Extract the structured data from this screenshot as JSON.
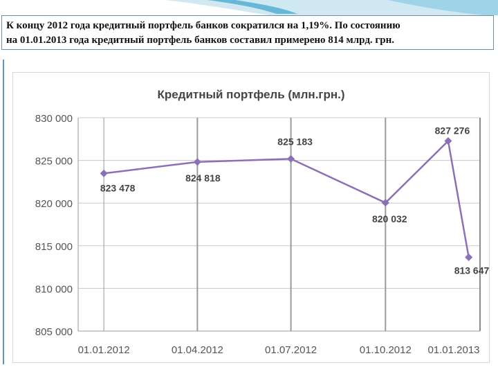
{
  "heading": {
    "line1": "К концу 2012 года кредитный портфель банков сократился на 1,19%. По состоянию",
    "line2": "на 01.01.2013 года кредитный портфель банков составил примерено 814 млрд. грн."
  },
  "colors": {
    "series": "#8b70b5",
    "grid": "#8c8c8c",
    "axis_text": "#555555",
    "accent_wave": "#66b8d6"
  },
  "chart_data": {
    "type": "line",
    "title": "Кредитный портфель (млн.грн.)",
    "xlabel": "",
    "ylabel": "",
    "x_tick_labels": [
      "01.01.2012",
      "01.04.2012",
      "01.07.2012",
      "01.10.2012",
      "01.01.2013"
    ],
    "y_tick_labels": [
      "830 000",
      "825 000",
      "820 000",
      "815 000",
      "810 000",
      "805 000"
    ],
    "ylim": [
      805000,
      830000
    ],
    "xlim": [
      "2011-12-07",
      "2013-01-01"
    ],
    "grid": true,
    "series": [
      {
        "points": [
          {
            "x": "2012-01-01",
            "y": 823478,
            "label": "823 478"
          },
          {
            "x": "2012-04-01",
            "y": 824818,
            "label": "824 818"
          },
          {
            "x": "2012-07-01",
            "y": 825183,
            "label": "825 183"
          },
          {
            "x": "2012-10-01",
            "y": 820032,
            "label": "820 032"
          },
          {
            "x": "2012-12-01",
            "y": 827276,
            "label": "827 276"
          },
          {
            "x": "2012-12-21",
            "y": 813647,
            "label": "813 647"
          }
        ]
      }
    ]
  }
}
